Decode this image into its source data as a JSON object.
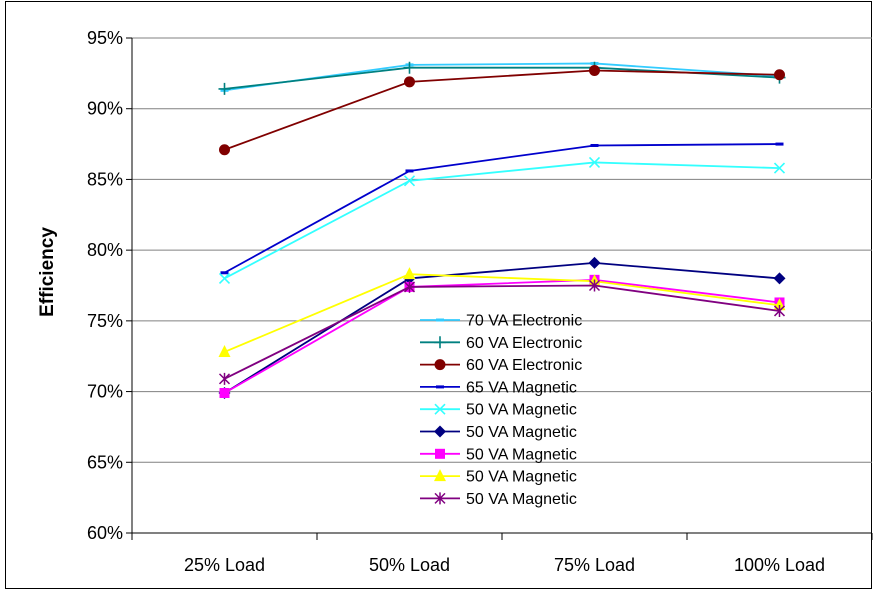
{
  "chart_data": {
    "type": "line",
    "title": "",
    "xlabel": "",
    "ylabel": "Efficiency",
    "categories": [
      "25% Load",
      "50% Load",
      "75% Load",
      "100% Load"
    ],
    "ylim": [
      60,
      95
    ],
    "yticks": [
      "60%",
      "65%",
      "70%",
      "75%",
      "80%",
      "85%",
      "90%",
      "95%"
    ],
    "grid": "horizontal",
    "legend_position": "center",
    "series": [
      {
        "name": "70 VA Electronic",
        "color": "#33CCFF",
        "marker": "dash",
        "values": [
          91.3,
          93.1,
          93.2,
          92.3
        ]
      },
      {
        "name": "60 VA Electronic",
        "color": "#008080",
        "marker": "plus",
        "values": [
          91.4,
          92.9,
          92.9,
          92.2
        ]
      },
      {
        "name": "60 VA Electronic",
        "color": "#800000",
        "marker": "circle",
        "values": [
          87.1,
          91.9,
          92.7,
          92.4
        ]
      },
      {
        "name": "65 VA Magnetic",
        "color": "#0000CC",
        "marker": "dash",
        "values": [
          78.4,
          85.6,
          87.4,
          87.5
        ]
      },
      {
        "name": "50 VA Magnetic",
        "color": "#33FFFF",
        "marker": "x",
        "values": [
          78.0,
          84.9,
          86.2,
          85.8
        ]
      },
      {
        "name": "50 VA Magnetic",
        "color": "#000080",
        "marker": "diamond",
        "values": [
          69.9,
          78.0,
          79.1,
          78.0
        ]
      },
      {
        "name": "50 VA Magnetic",
        "color": "#FF00FF",
        "marker": "square",
        "values": [
          69.9,
          77.4,
          77.9,
          76.3
        ]
      },
      {
        "name": "50 VA Magnetic",
        "color": "#FFFF00",
        "marker": "triangle",
        "values": [
          72.8,
          78.3,
          77.8,
          76.1
        ]
      },
      {
        "name": "50 VA Magnetic",
        "color": "#800080",
        "marker": "star",
        "values": [
          70.9,
          77.4,
          77.5,
          75.7
        ]
      }
    ]
  }
}
